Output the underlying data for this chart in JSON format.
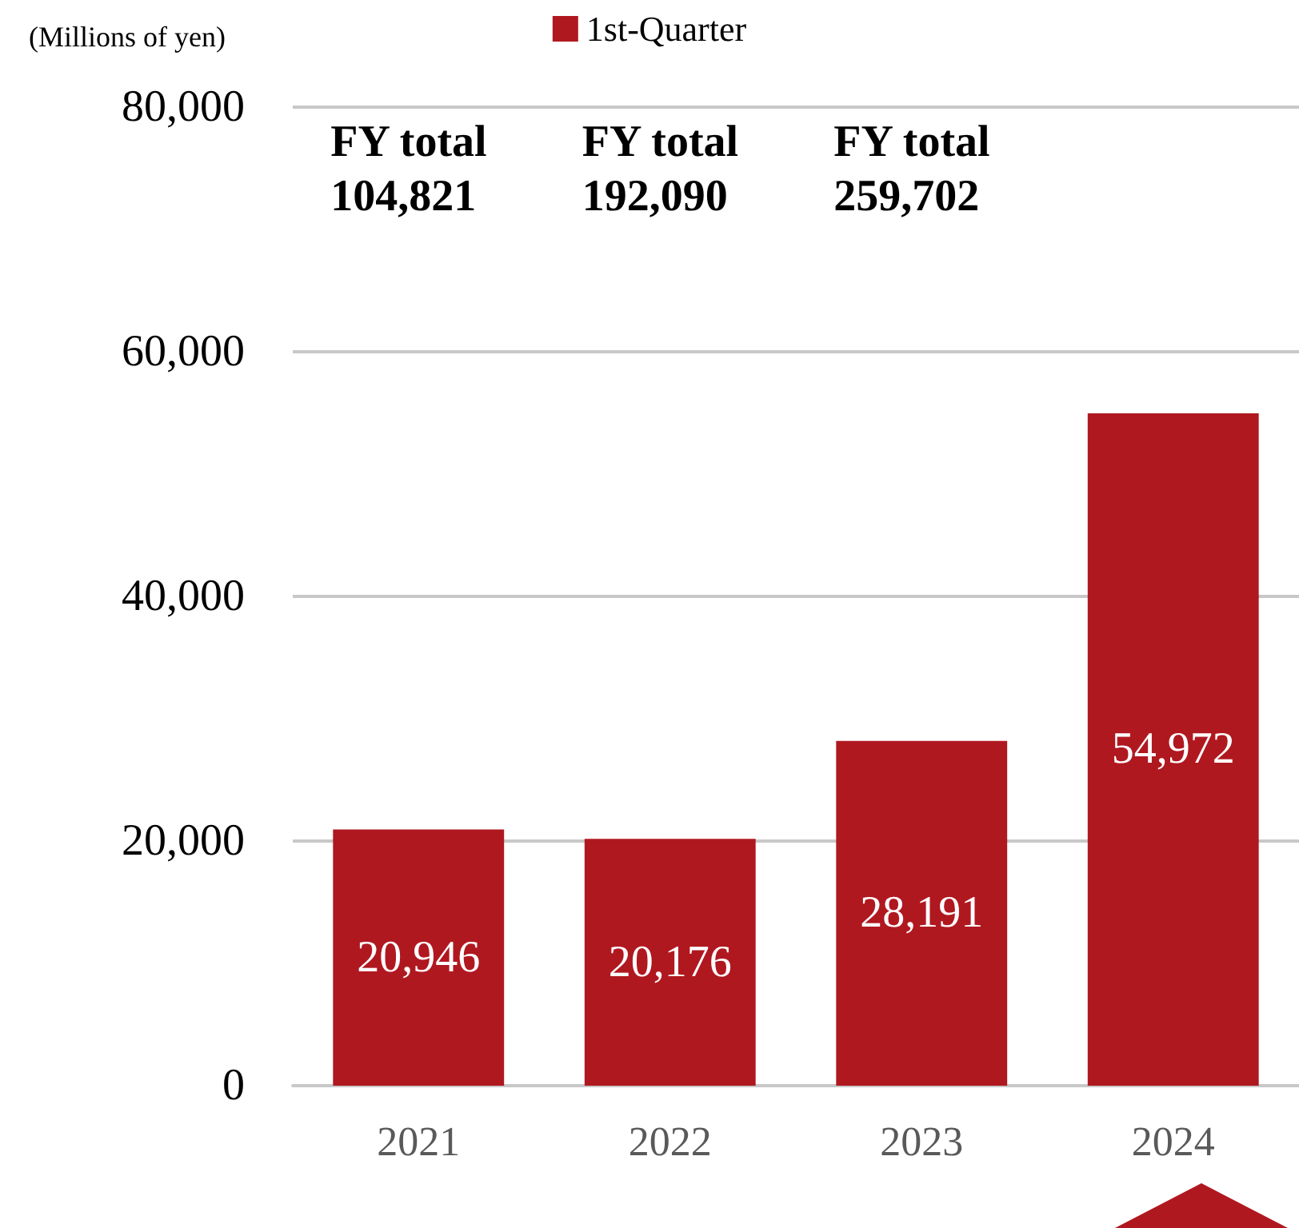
{
  "chart_data": {
    "type": "bar",
    "ylabel": "(Millions of yen)",
    "categories": [
      "2021",
      "2022",
      "2023",
      "2024"
    ],
    "series": [
      {
        "name": "1st-Quarter",
        "color": "#b01820",
        "values": [
          20946,
          20176,
          28191,
          54972
        ],
        "value_labels": [
          "20,946",
          "20,176",
          "28,191",
          "54,972"
        ]
      }
    ],
    "ylim": [
      0,
      80000
    ],
    "yticks": [
      {
        "value": 0,
        "label": "0"
      },
      {
        "value": 20000,
        "label": "20,000"
      },
      {
        "value": 40000,
        "label": "40,000"
      },
      {
        "value": 60000,
        "label": "60,000"
      },
      {
        "value": 80000,
        "label": "80,000"
      }
    ],
    "annotations": [
      "FY total\n104,821",
      "FY total\n192,090",
      "FY total\n259,702"
    ],
    "grid": "y",
    "legend": "top"
  }
}
